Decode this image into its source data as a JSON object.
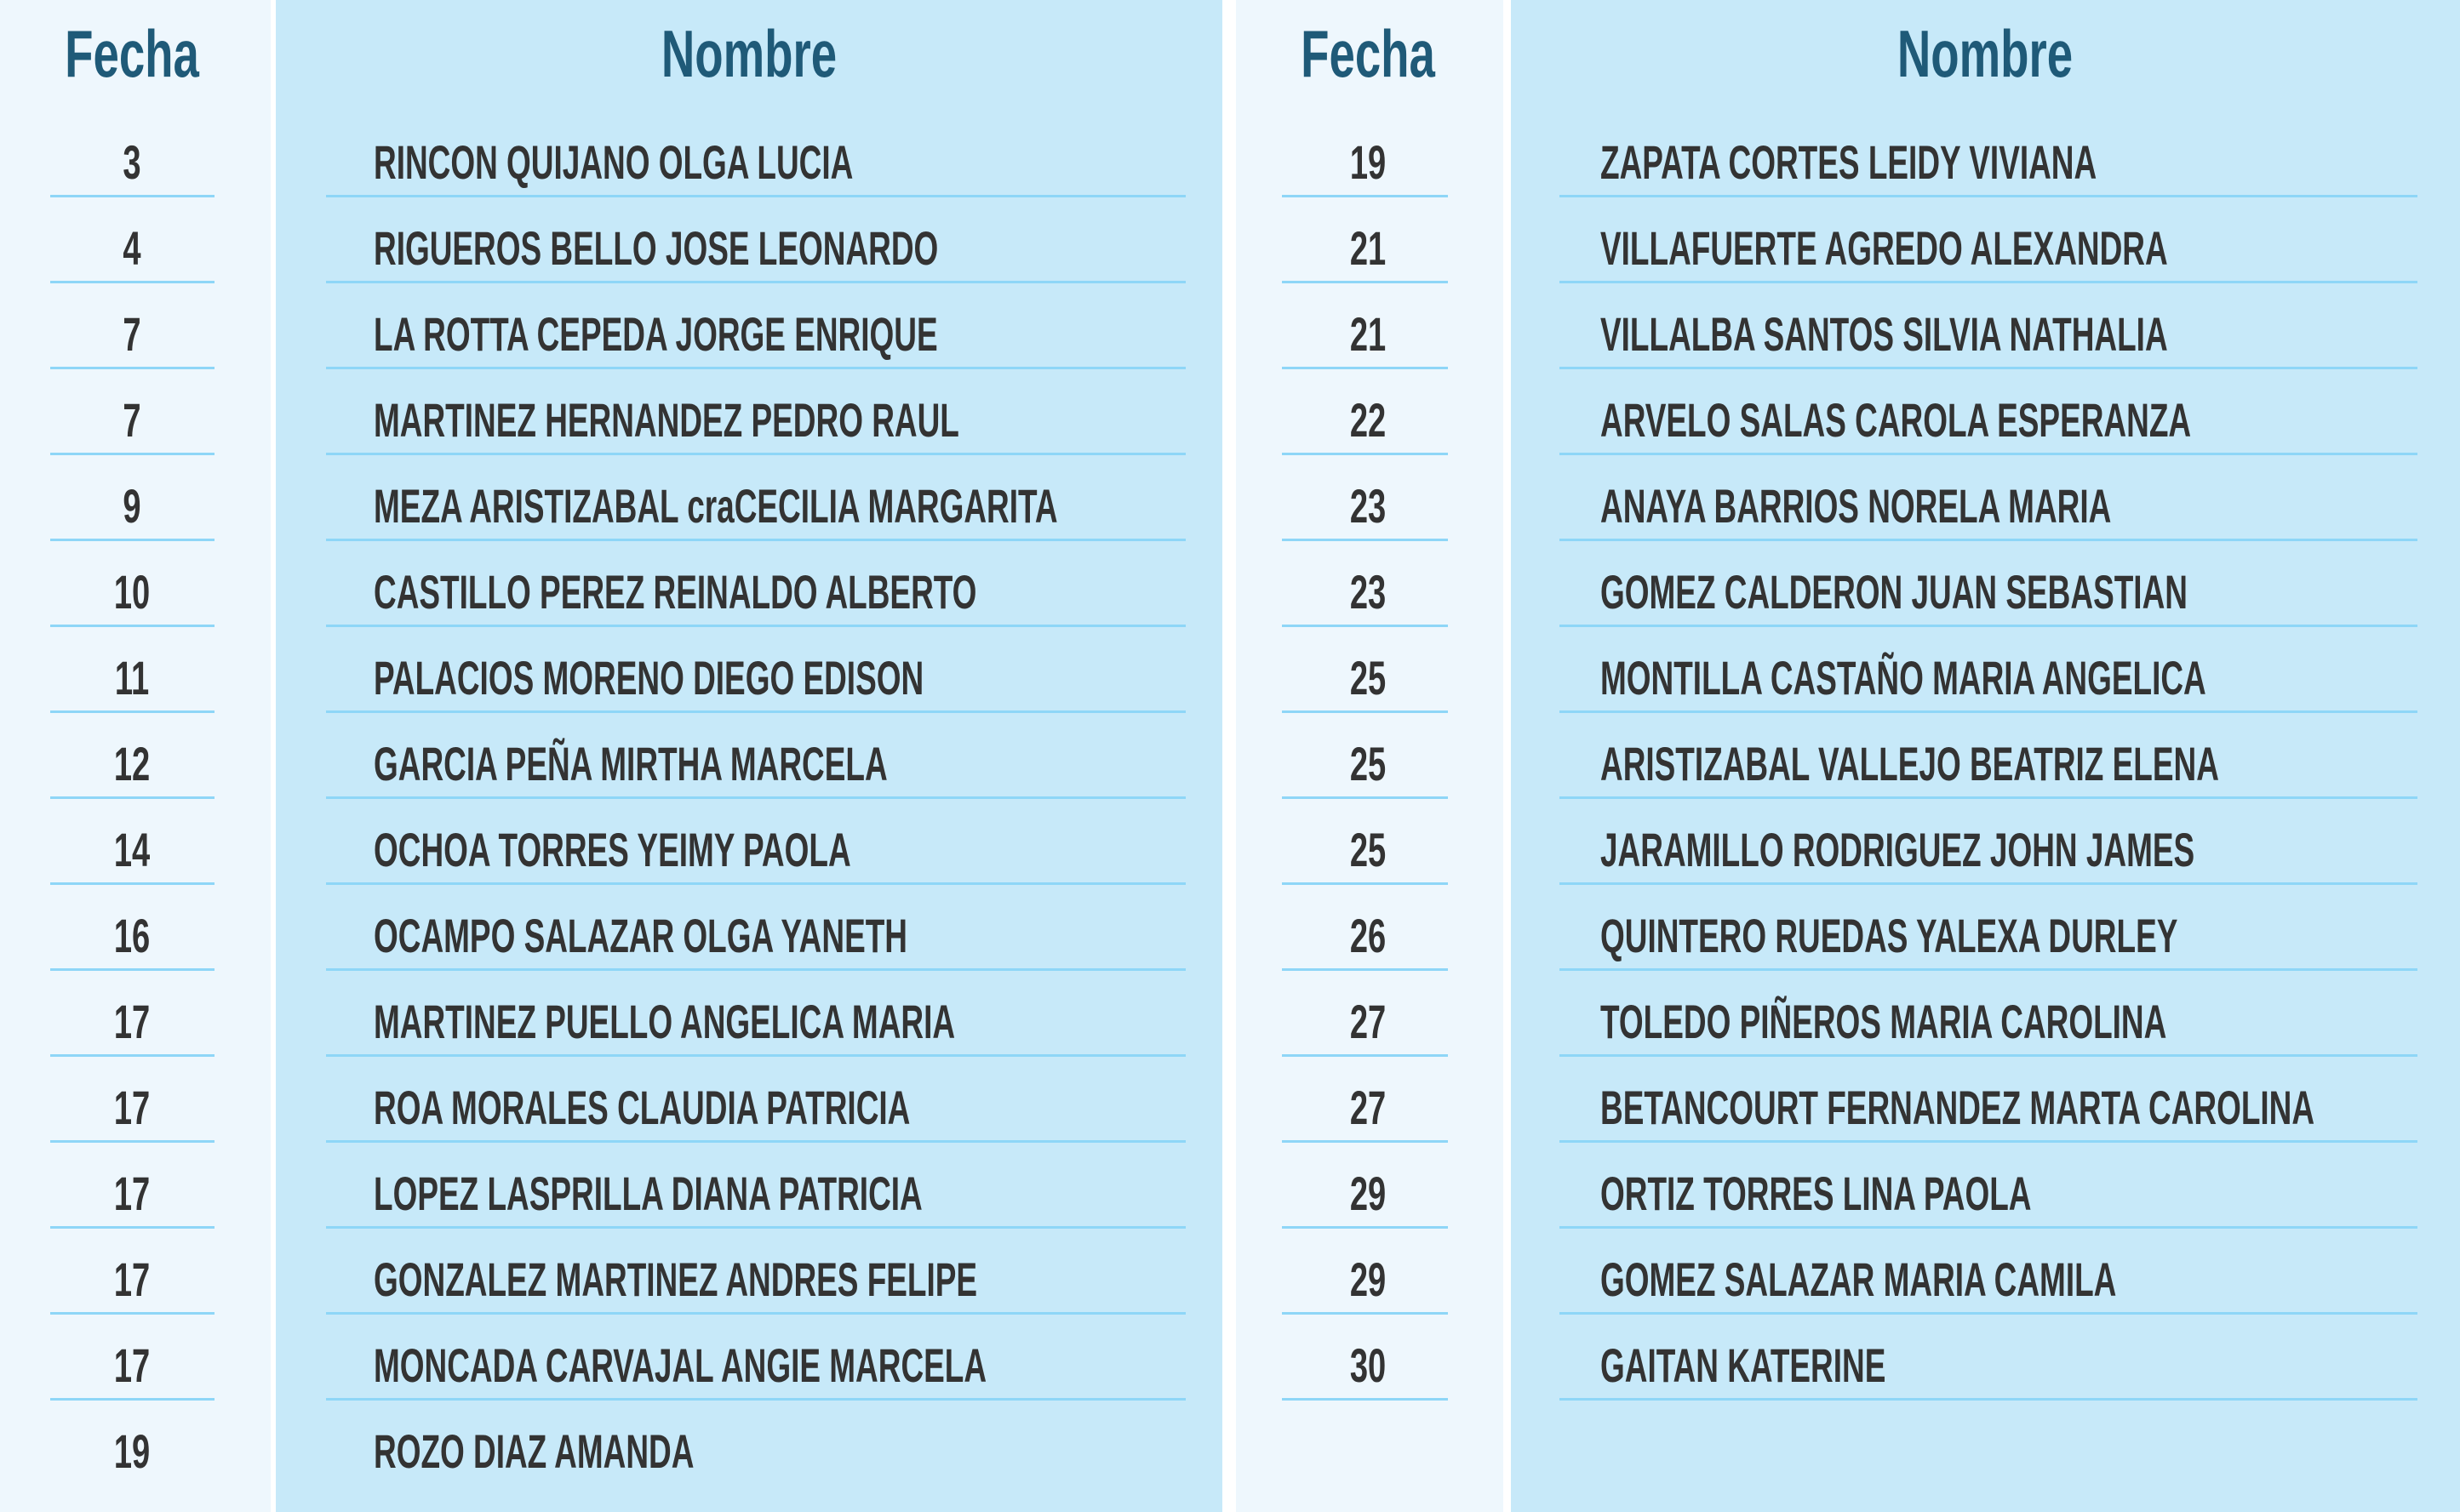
{
  "left_table": {
    "header_fecha": "Fecha",
    "header_nombre": "Nombre",
    "rows": [
      {
        "fecha": "3",
        "nombre": "RINCON QUIJANO OLGA LUCIA"
      },
      {
        "fecha": "4",
        "nombre": "RIGUEROS BELLO JOSE LEONARDO"
      },
      {
        "fecha": "7",
        "nombre": "LA ROTTA CEPEDA JORGE ENRIQUE"
      },
      {
        "fecha": "7",
        "nombre": "MARTINEZ HERNANDEZ PEDRO RAUL"
      },
      {
        "fecha": "9",
        "nombre": "MEZA ARISTIZABAL craCECILIA MARGARITA"
      },
      {
        "fecha": "10",
        "nombre": "CASTILLO PEREZ REINALDO ALBERTO"
      },
      {
        "fecha": "11",
        "nombre": "PALACIOS MORENO DIEGO EDISON"
      },
      {
        "fecha": "12",
        "nombre": "GARCIA PEÑA MIRTHA MARCELA"
      },
      {
        "fecha": "14",
        "nombre": "OCHOA TORRES YEIMY PAOLA"
      },
      {
        "fecha": "16",
        "nombre": "OCAMPO SALAZAR OLGA YANETH"
      },
      {
        "fecha": "17",
        "nombre": "MARTINEZ PUELLO ANGELICA MARIA"
      },
      {
        "fecha": "17",
        "nombre": "ROA MORALES CLAUDIA PATRICIA"
      },
      {
        "fecha": "17",
        "nombre": "LOPEZ LASPRILLA DIANA PATRICIA"
      },
      {
        "fecha": "17",
        "nombre": "GONZALEZ MARTINEZ ANDRES FELIPE"
      },
      {
        "fecha": "17",
        "nombre": "MONCADA CARVAJAL ANGIE MARCELA"
      },
      {
        "fecha": "19",
        "nombre": "ROZO DIAZ AMANDA"
      }
    ]
  },
  "right_table": {
    "header_fecha": "Fecha",
    "header_nombre": "Nombre",
    "rows": [
      {
        "fecha": "19",
        "nombre": "ZAPATA CORTES LEIDY VIVIANA"
      },
      {
        "fecha": "21",
        "nombre": "VILLAFUERTE AGREDO ALEXANDRA"
      },
      {
        "fecha": "21",
        "nombre": "VILLALBA SANTOS SILVIA NATHALIA"
      },
      {
        "fecha": "22",
        "nombre": "ARVELO SALAS CAROLA ESPERANZA"
      },
      {
        "fecha": "23",
        "nombre": "ANAYA BARRIOS NORELA MARIA"
      },
      {
        "fecha": "23",
        "nombre": "GOMEZ CALDERON JUAN SEBASTIAN"
      },
      {
        "fecha": "25",
        "nombre": "MONTILLA CASTAÑO MARIA ANGELICA"
      },
      {
        "fecha": "25",
        "nombre": "ARISTIZABAL VALLEJO BEATRIZ ELENA"
      },
      {
        "fecha": "25",
        "nombre": "JARAMILLO RODRIGUEZ JOHN JAMES"
      },
      {
        "fecha": "26",
        "nombre": "QUINTERO RUEDAS YALEXA DURLEY"
      },
      {
        "fecha": "27",
        "nombre": "TOLEDO PIÑEROS MARIA CAROLINA"
      },
      {
        "fecha": "27",
        "nombre": "BETANCOURT FERNANDEZ MARTA CAROLINA"
      },
      {
        "fecha": "29",
        "nombre": "ORTIZ TORRES LINA PAOLA"
      },
      {
        "fecha": "29",
        "nombre": "GOMEZ SALAZAR MARIA CAMILA"
      },
      {
        "fecha": "30",
        "nombre": "GAITAN  KATERINE"
      }
    ]
  },
  "colors": {
    "header": "#1f5a78",
    "text": "#333333",
    "fecha_bg": "#eef7fd",
    "nombre_bg": "#c7e9f9",
    "divider": "#8ed6f7"
  }
}
